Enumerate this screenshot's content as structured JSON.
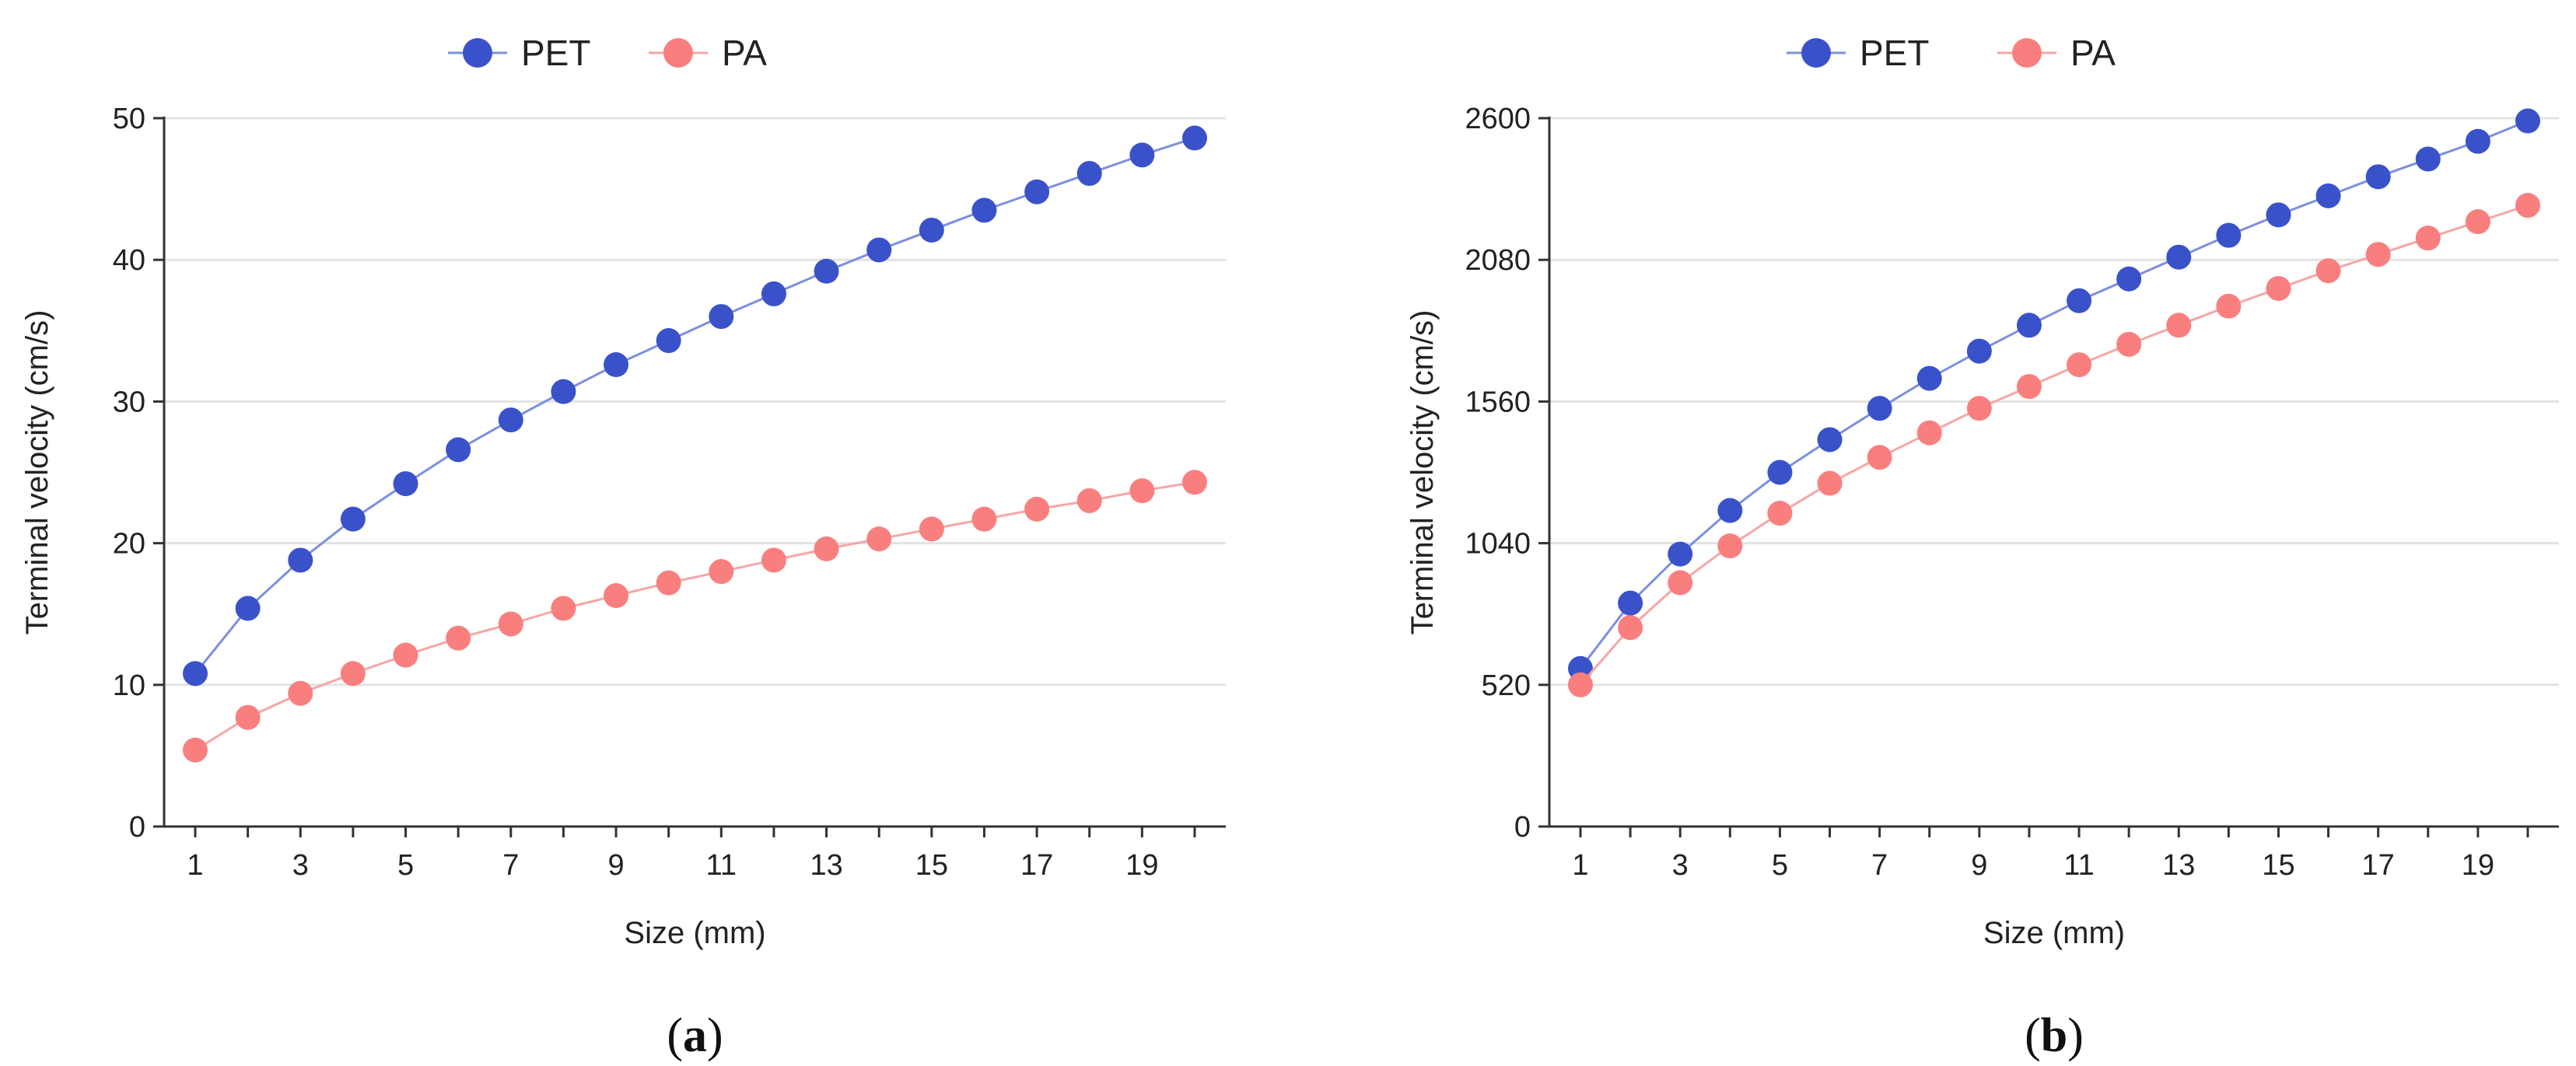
{
  "chart_data": [
    {
      "type": "line",
      "panel_label": "a",
      "legend": [
        "PET",
        "PA"
      ],
      "xlabel": "Size (mm)",
      "ylabel": "Terminal velocity (cm/s)",
      "x": [
        1,
        2,
        3,
        4,
        5,
        6,
        7,
        8,
        9,
        10,
        11,
        12,
        13,
        14,
        15,
        16,
        17,
        18,
        19,
        20
      ],
      "xticks": [
        1,
        3,
        5,
        7,
        9,
        11,
        13,
        15,
        17,
        19
      ],
      "yticks": [
        0,
        10,
        20,
        30,
        40,
        50
      ],
      "ylim": [
        0,
        50
      ],
      "grid": true,
      "series": [
        {
          "name": "PET",
          "color": "#3a52c9",
          "line_color": "#7c8fe0",
          "values": [
            10.8,
            15.4,
            18.8,
            21.7,
            24.2,
            26.6,
            28.7,
            30.7,
            32.6,
            34.3,
            36.0,
            37.6,
            39.2,
            40.7,
            42.1,
            43.5,
            44.8,
            46.1,
            47.4,
            48.6
          ]
        },
        {
          "name": "PA",
          "color": "#f97f7f",
          "line_color": "#f6a6a6",
          "values": [
            5.4,
            7.7,
            9.4,
            10.8,
            12.1,
            13.3,
            14.3,
            15.4,
            16.3,
            17.2,
            18.0,
            18.8,
            19.6,
            20.3,
            21.0,
            21.7,
            22.4,
            23.0,
            23.7,
            24.3
          ]
        }
      ]
    },
    {
      "type": "line",
      "panel_label": "b",
      "legend": [
        "PET",
        "PA"
      ],
      "xlabel": "Size (mm)",
      "ylabel": "Terminal velocity (cm/s)",
      "x": [
        1,
        2,
        3,
        4,
        5,
        6,
        7,
        8,
        9,
        10,
        11,
        12,
        13,
        14,
        15,
        16,
        17,
        18,
        19,
        20
      ],
      "xticks": [
        1,
        3,
        5,
        7,
        9,
        11,
        13,
        15,
        17,
        19
      ],
      "yticks": [
        0,
        520,
        1040,
        1560,
        2080,
        2600
      ],
      "ylim": [
        0,
        2600
      ],
      "grid": true,
      "series": [
        {
          "name": "PET",
          "color": "#3a52c9",
          "line_color": "#7c8fe0",
          "values": [
            580,
            820,
            1000,
            1160,
            1300,
            1420,
            1535,
            1645,
            1745,
            1840,
            1930,
            2010,
            2090,
            2170,
            2245,
            2315,
            2385,
            2450,
            2515,
            2590
          ]
        },
        {
          "name": "PA",
          "color": "#f97f7f",
          "line_color": "#f6a6a6",
          "values": [
            520,
            730,
            895,
            1030,
            1150,
            1260,
            1355,
            1445,
            1535,
            1615,
            1695,
            1770,
            1840,
            1910,
            1975,
            2040,
            2100,
            2160,
            2220,
            2280
          ]
        }
      ]
    }
  ]
}
